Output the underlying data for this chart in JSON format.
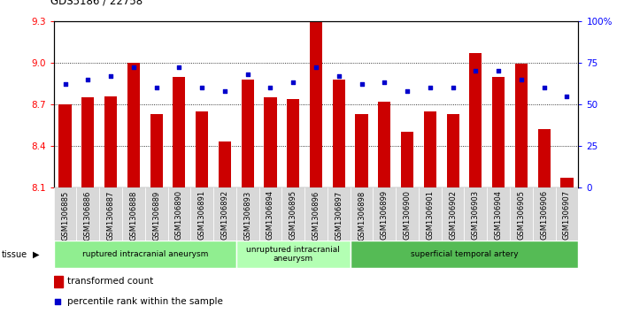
{
  "title": "GDS5186 / 22758",
  "samples": [
    "GSM1306885",
    "GSM1306886",
    "GSM1306887",
    "GSM1306888",
    "GSM1306889",
    "GSM1306890",
    "GSM1306891",
    "GSM1306892",
    "GSM1306893",
    "GSM1306894",
    "GSM1306895",
    "GSM1306896",
    "GSM1306897",
    "GSM1306898",
    "GSM1306899",
    "GSM1306900",
    "GSM1306901",
    "GSM1306902",
    "GSM1306903",
    "GSM1306904",
    "GSM1306905",
    "GSM1306906",
    "GSM1306907"
  ],
  "bar_values": [
    8.7,
    8.75,
    8.76,
    9.0,
    8.63,
    8.9,
    8.65,
    8.43,
    8.88,
    8.75,
    8.74,
    9.35,
    8.88,
    8.63,
    8.72,
    8.5,
    8.65,
    8.63,
    9.07,
    8.9,
    8.99,
    8.52,
    8.17
  ],
  "percentile_values": [
    62,
    65,
    67,
    72,
    60,
    72,
    60,
    58,
    68,
    60,
    63,
    72,
    67,
    62,
    63,
    58,
    60,
    60,
    70,
    70,
    65,
    60,
    55
  ],
  "groups": [
    {
      "label": "ruptured intracranial aneurysm",
      "start": 0,
      "end": 8,
      "color": "#90EE90"
    },
    {
      "label": "unruptured intracranial\naneurysm",
      "start": 8,
      "end": 13,
      "color": "#b3ffb3"
    },
    {
      "label": "superficial temporal artery",
      "start": 13,
      "end": 23,
      "color": "#55bb55"
    }
  ],
  "ymin": 8.1,
  "ymax": 9.3,
  "yticks": [
    8.1,
    8.4,
    8.7,
    9.0,
    9.3
  ],
  "ytick_labels": [
    "8.1",
    "8.4",
    "8.7",
    "9.0",
    "9.3"
  ],
  "right_yticks": [
    0,
    25,
    50,
    75,
    100
  ],
  "right_ytick_labels": [
    "0",
    "25",
    "50",
    "75",
    "100%"
  ],
  "bar_color": "#cc0000",
  "dot_color": "#0000cc",
  "bar_width": 0.55,
  "cell_bg": "#d8d8d8",
  "plot_bg": "#ffffff",
  "legend_red_label": "transformed count",
  "legend_blue_label": "percentile rank within the sample",
  "tissue_label": "tissue"
}
